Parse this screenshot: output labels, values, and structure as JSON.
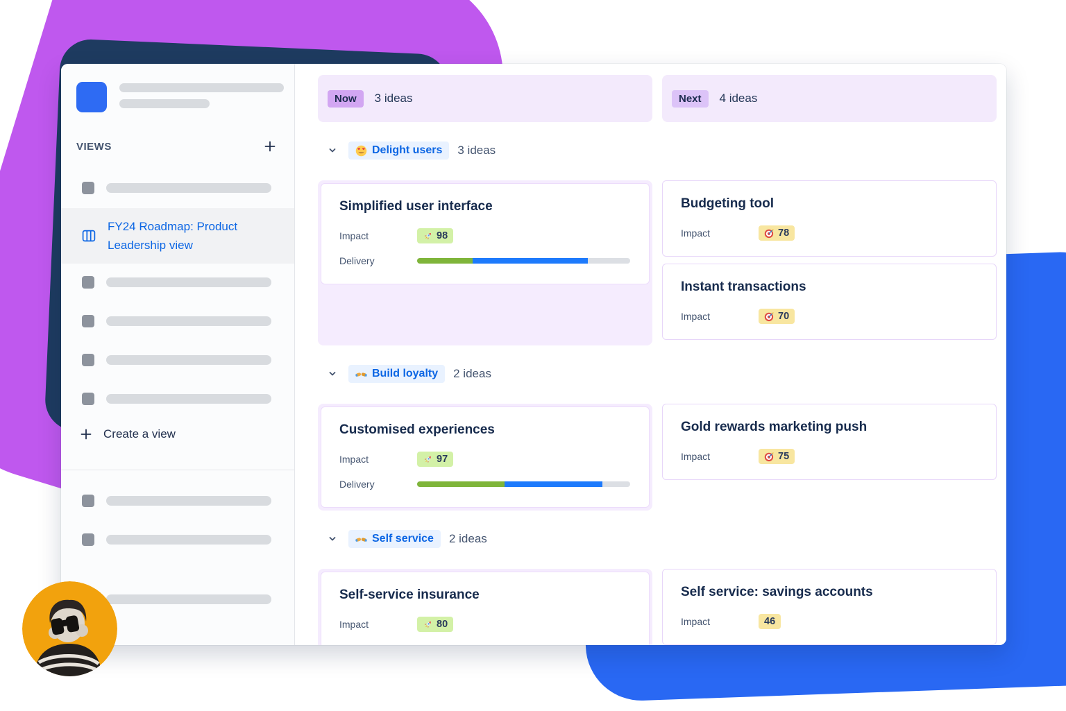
{
  "colors": {
    "brand_purple": "#bf58ee",
    "brand_navy": "#1e3b60",
    "brand_blue": "#2968f3",
    "brand_orange": "#f2a20d",
    "link_blue": "#0c66e4",
    "badge_green_bg": "#d3f1a7",
    "badge_yellow_bg": "#f8e6a0",
    "progress_done_green": "#7fb53a",
    "progress_inprogress_blue": "#1d7afc",
    "lane_bg": "#f5ecfe",
    "column_header_bg": "#f3eafc"
  },
  "sidebar": {
    "views_label": "VIEWS",
    "add_view_icon": "plus-icon",
    "active_view": {
      "icon": "board-columns-icon",
      "line1": "FY24 Roadmap: Product",
      "line2": "Leadership view"
    },
    "create_view_label": "Create a view"
  },
  "labels": {
    "impact": "Impact",
    "delivery": "Delivery"
  },
  "columns": [
    {
      "badge": "Now",
      "count": "3 ideas"
    },
    {
      "badge": "Next",
      "count": "4 ideas"
    }
  ],
  "groups": [
    {
      "icon": "heart-eyes-icon",
      "label": "Delight users",
      "count": "3 ideas",
      "now_cards": [
        {
          "title": "Simplified user interface",
          "impact_icon": "rocket-icon",
          "impact": "98",
          "delivery": {
            "green": 26,
            "blue": 54
          }
        }
      ],
      "next_cards": [
        {
          "title": "Budgeting tool",
          "impact_icon": "target-icon",
          "impact": "78"
        },
        {
          "title": "Instant transactions",
          "impact_icon": "target-icon",
          "impact": "70"
        }
      ]
    },
    {
      "icon": "handshake-icon",
      "label": "Build loyalty",
      "count": "2 ideas",
      "now_cards": [
        {
          "title": "Customised experiences",
          "impact_icon": "rocket-icon",
          "impact": "97",
          "delivery": {
            "green": 41,
            "blue": 46
          }
        }
      ],
      "next_cards": [
        {
          "title": "Gold rewards marketing push",
          "impact_icon": "target-icon",
          "impact": "75"
        }
      ]
    },
    {
      "icon": "handshake-icon",
      "label": "Self service",
      "count": "2 ideas",
      "now_cards": [
        {
          "title": "Self-service insurance",
          "impact_icon": "rocket-icon",
          "impact": "80"
        }
      ],
      "next_cards": [
        {
          "title": "Self service: savings accounts",
          "impact_icon": "none",
          "impact": "46"
        }
      ]
    }
  ]
}
